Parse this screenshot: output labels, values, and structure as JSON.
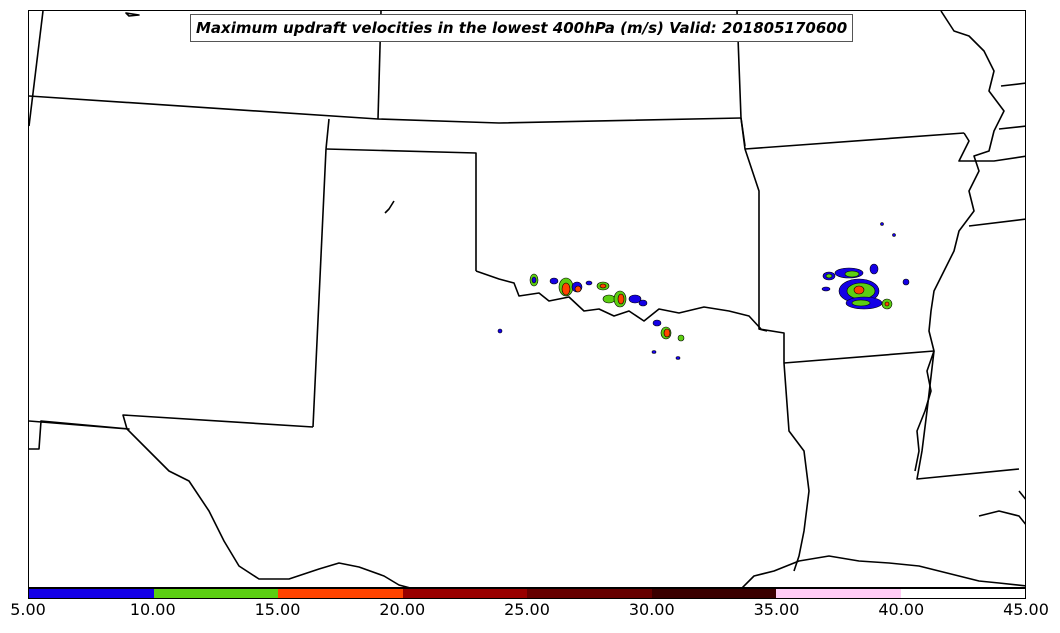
{
  "map": {
    "title": "Maximum updraft velocities in the lowest 400hPa (m/s) Valid: 201805170600",
    "region": "South-central United States"
  },
  "colorbar": {
    "ticks": [
      "5.00",
      "10.00",
      "15.00",
      "20.00",
      "25.00",
      "30.00",
      "35.00",
      "40.00",
      "45.00"
    ],
    "colors": [
      "#1400e6",
      "#5ccf12",
      "#ff4400",
      "#990000",
      "#660000",
      "#3a0000",
      "#ffccf5",
      "#ffffff"
    ]
  },
  "cells_legend": {
    "low": "#1400e6",
    "moderate": "#5ccf12",
    "high": "#ff4400"
  }
}
